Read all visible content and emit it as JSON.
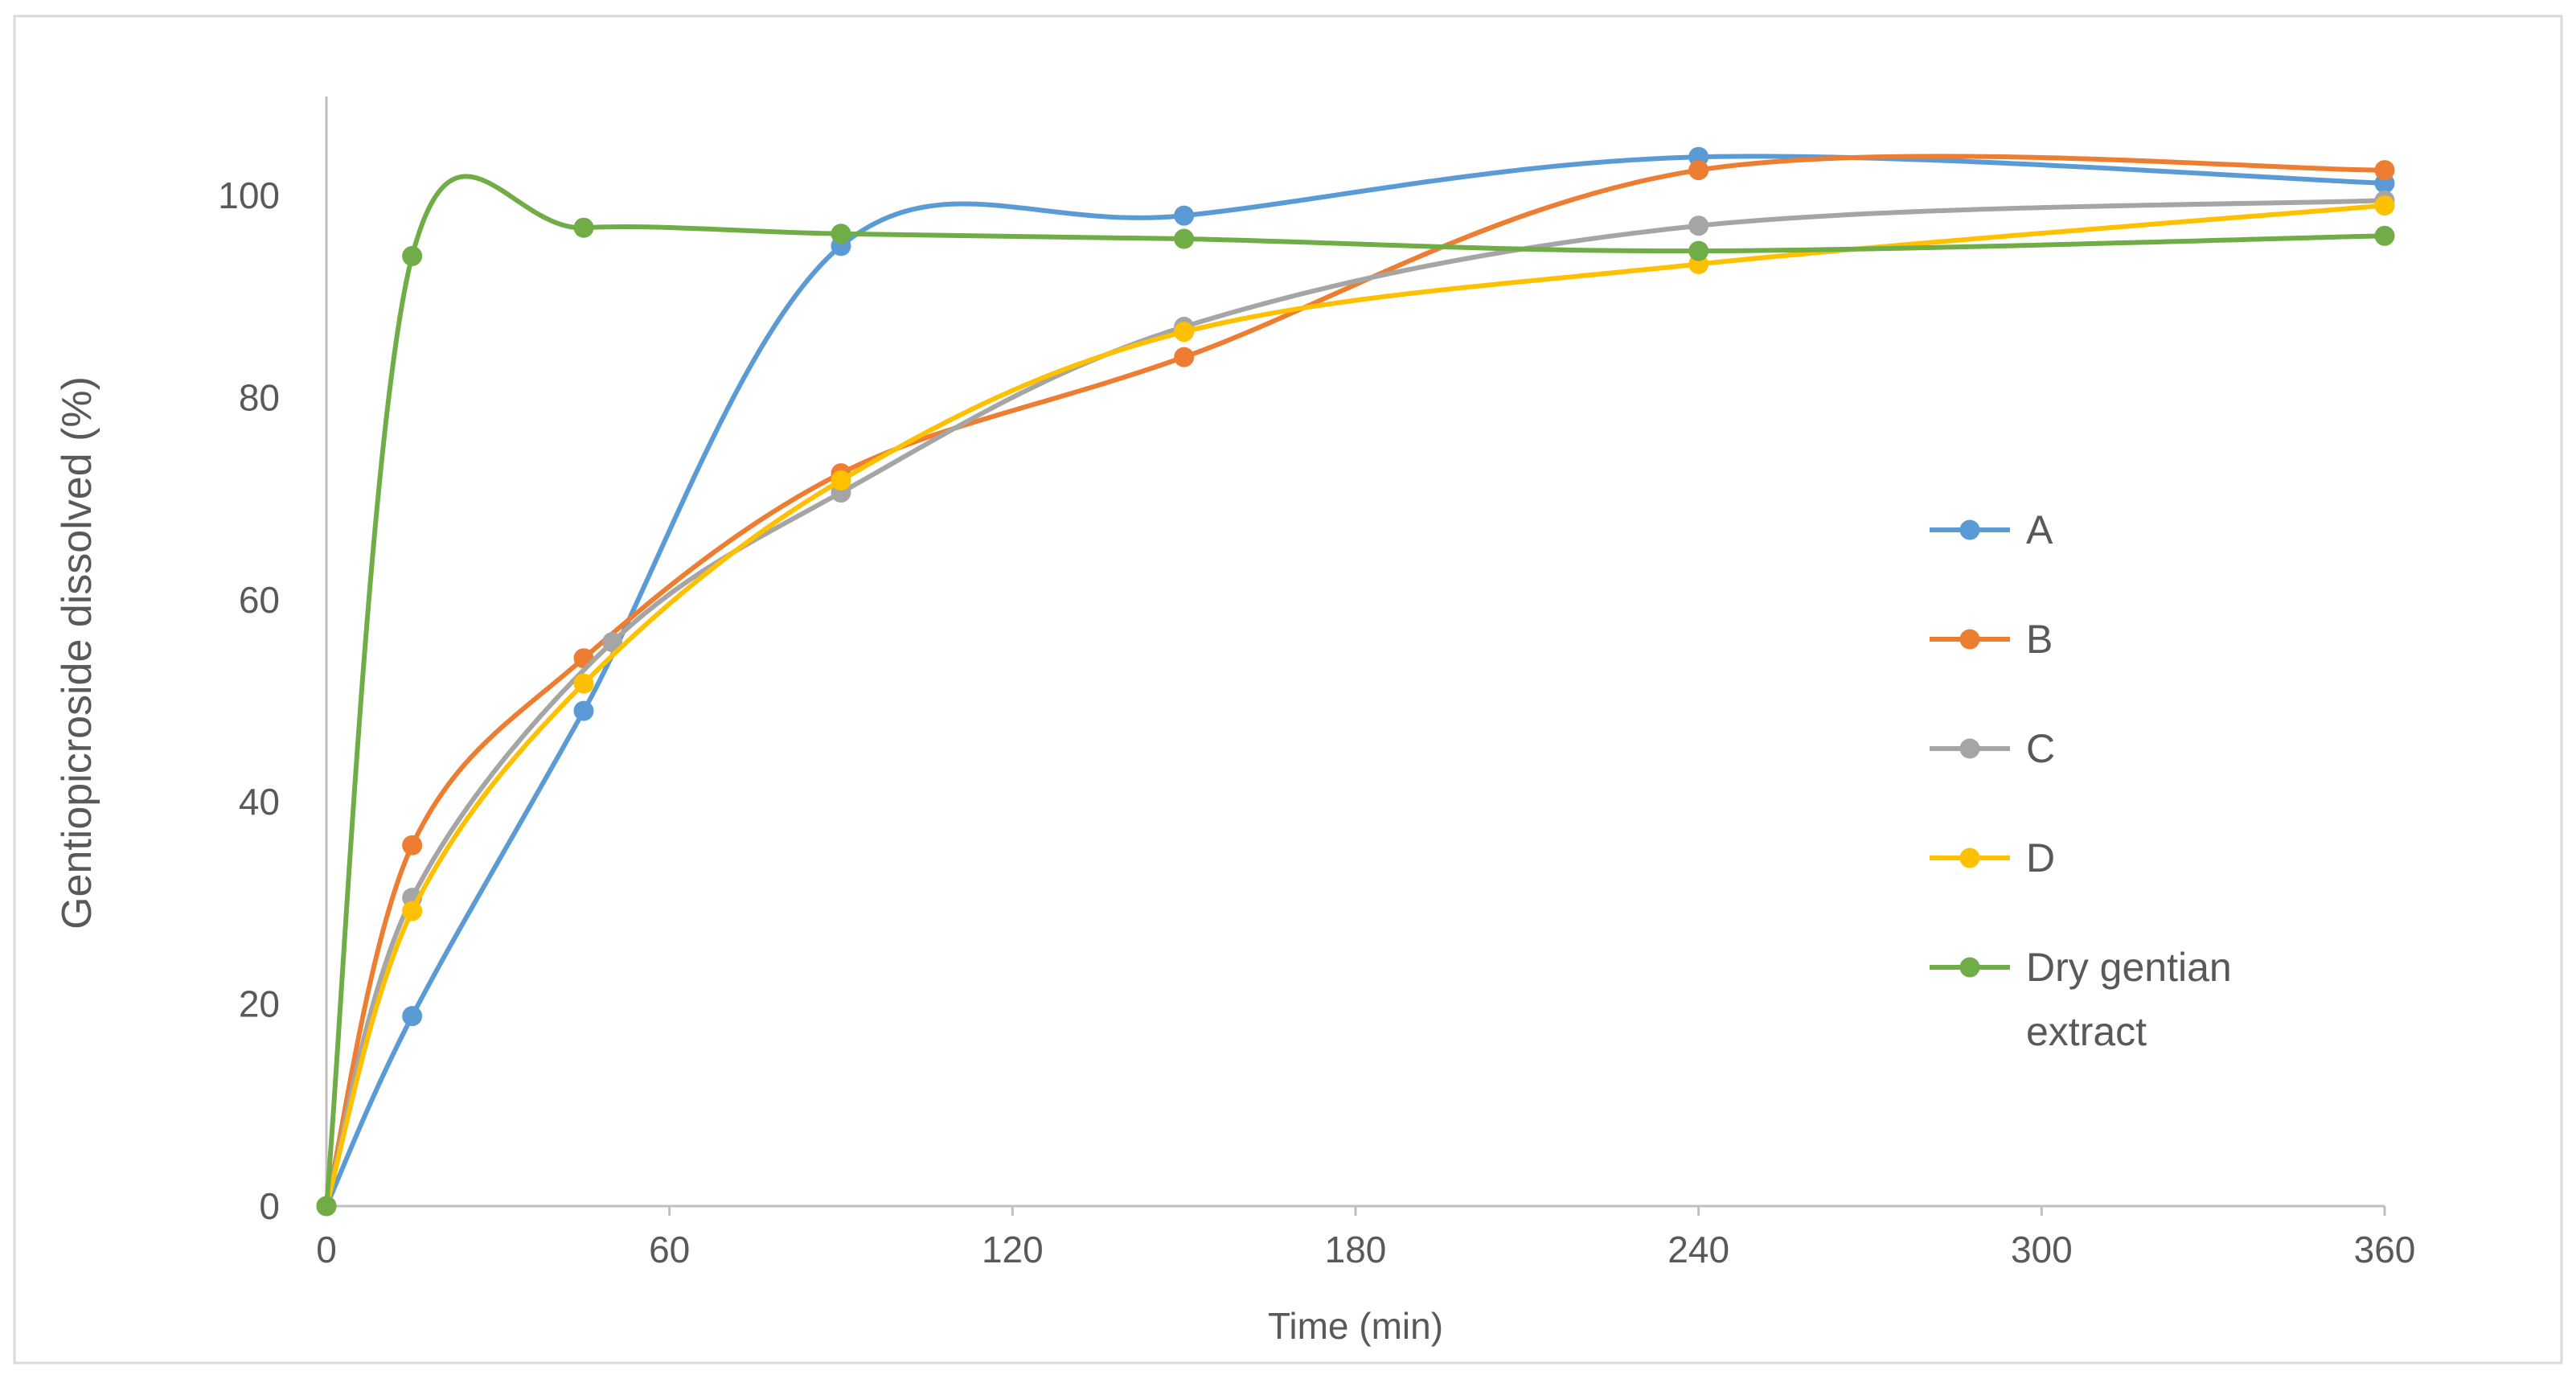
{
  "chart_data": {
    "type": "line",
    "title": "",
    "xlabel": "Time (min)",
    "ylabel": "Gentiopicroside dissolved (%)",
    "xlim": [
      0,
      360
    ],
    "ylim": [
      0,
      110
    ],
    "x_ticks": [
      "0",
      "60",
      "120",
      "180",
      "240",
      "300",
      "360"
    ],
    "y_ticks": [
      "0",
      "20",
      "40",
      "60",
      "80",
      "100"
    ],
    "grid": false,
    "smooth": true,
    "legend_position": "right",
    "series": [
      {
        "name": "A",
        "color": "#5B9BD5",
        "x": [
          0,
          15,
          45,
          90,
          150,
          240,
          360
        ],
        "y": [
          0,
          18.8,
          49,
          95,
          98,
          103.8,
          101.2
        ]
      },
      {
        "name": "B",
        "color": "#ED7D31",
        "x": [
          0,
          15,
          45,
          90,
          150,
          240,
          360
        ],
        "y": [
          0,
          35.7,
          54.2,
          72.5,
          84,
          102.5,
          102.5
        ]
      },
      {
        "name": "C",
        "color": "#A5A5A5",
        "x": [
          0,
          15,
          50,
          90,
          150,
          240,
          360
        ],
        "y": [
          0,
          30.5,
          55.8,
          70.6,
          87,
          97,
          99.5
        ]
      },
      {
        "name": "D",
        "color": "#FFC000",
        "x": [
          0,
          15,
          45,
          90,
          150,
          240,
          360
        ],
        "y": [
          0,
          29.2,
          51.7,
          71.8,
          86.5,
          93.2,
          99
        ]
      },
      {
        "name": "Dry gentian extract",
        "color": "#70AD47",
        "x": [
          0,
          15,
          45,
          90,
          150,
          240,
          360
        ],
        "y": [
          0,
          94,
          96.8,
          96.2,
          95.7,
          94.5,
          96
        ]
      }
    ]
  },
  "legend_lines": {
    "s4": [
      "Dry gentian",
      "extract"
    ]
  }
}
